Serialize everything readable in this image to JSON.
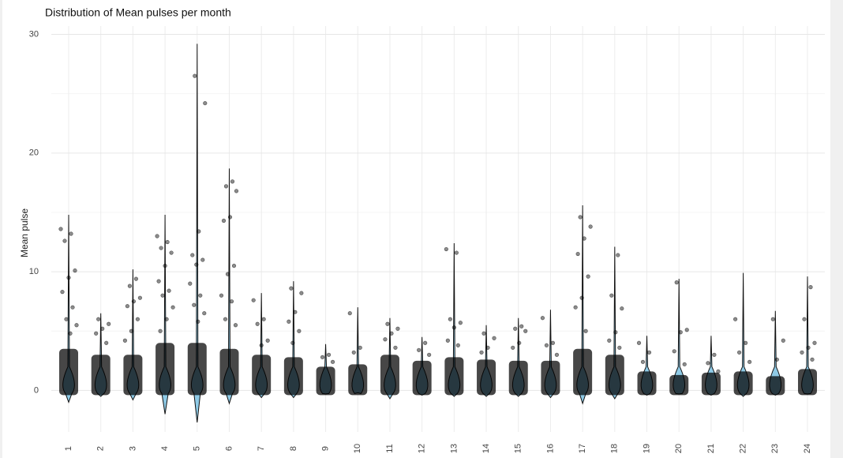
{
  "chart_data": {
    "type": "violin",
    "title": "Distribution of Mean pulses per month",
    "y_label": "Mean pulse",
    "categories": [
      "1",
      "2",
      "3",
      "4",
      "5",
      "6",
      "7",
      "8",
      "9",
      "10",
      "11",
      "12",
      "13",
      "14",
      "15",
      "16",
      "17",
      "18",
      "19",
      "20",
      "21",
      "22",
      "23",
      "24"
    ],
    "max": [
      14.8,
      6.5,
      10.2,
      14.8,
      29.2,
      18.7,
      8.2,
      9.2,
      3.9,
      7.0,
      6.1,
      4.5,
      12.4,
      5.5,
      6.1,
      6.8,
      15.6,
      12.1,
      4.6,
      9.4,
      4.6,
      9.9,
      6.7,
      9.6
    ],
    "min": [
      -1.0,
      -0.5,
      -0.8,
      -2.0,
      -2.7,
      -1.1,
      -0.6,
      -0.6,
      -0.3,
      -0.2,
      -0.7,
      -0.4,
      -0.5,
      -0.5,
      -0.5,
      -0.6,
      -1.1,
      -0.7,
      -0.4,
      -0.3,
      -0.4,
      -0.5,
      -0.4,
      -0.3
    ],
    "cloud_top": [
      3.5,
      3.0,
      3.0,
      4.0,
      4.0,
      3.5,
      3.0,
      2.8,
      2.0,
      2.2,
      3.0,
      2.5,
      2.8,
      2.6,
      2.5,
      2.5,
      3.5,
      3.0,
      1.6,
      1.3,
      1.5,
      1.6,
      1.2,
      1.8
    ],
    "outliers": [
      [
        13.6,
        13.2,
        12.6,
        10.1,
        9.5,
        8.3,
        7.0,
        6.0,
        5.5,
        4.8
      ],
      [
        6.0,
        5.6,
        5.2,
        4.8,
        4.0
      ],
      [
        9.4,
        8.8,
        7.8,
        7.5,
        7.1,
        6.0,
        5.0,
        4.2
      ],
      [
        13.0,
        12.5,
        12.0,
        11.6,
        10.5,
        9.2,
        8.4,
        8.0,
        7.0,
        6.0,
        5.0
      ],
      [
        26.5,
        24.2,
        13.4,
        11.4,
        11.0,
        10.6,
        9.0,
        8.0,
        7.2,
        6.5,
        5.8
      ],
      [
        17.6,
        17.2,
        16.8,
        14.6,
        14.3,
        10.5,
        9.8,
        8.0,
        7.5,
        6.0,
        5.5
      ],
      [
        7.6,
        6.0,
        5.6,
        4.2,
        3.8
      ],
      [
        8.6,
        8.2,
        6.6,
        5.8,
        5.0,
        4.0
      ],
      [
        3.0,
        2.8,
        2.4
      ],
      [
        6.5,
        3.6,
        3.2
      ],
      [
        5.6,
        5.2,
        4.8,
        4.3,
        3.6
      ],
      [
        4.0,
        3.4,
        3.0
      ],
      [
        11.9,
        11.6,
        6.0,
        5.7,
        5.3,
        4.2,
        3.8
      ],
      [
        4.8,
        4.4,
        3.6,
        3.2
      ],
      [
        5.4,
        5.2,
        5.0,
        4.0,
        3.6
      ],
      [
        6.1,
        4.0,
        3.8,
        3.0
      ],
      [
        14.6,
        13.8,
        12.8,
        11.5,
        9.6,
        7.8,
        7.0,
        5.0
      ],
      [
        11.4,
        8.0,
        6.9,
        4.9,
        4.2,
        3.6
      ],
      [
        4.0,
        3.2,
        2.4
      ],
      [
        9.1,
        5.1,
        4.9,
        3.3,
        2.2
      ],
      [
        3.0,
        2.3,
        1.6
      ],
      [
        6.0,
        4.0,
        3.2,
        2.4
      ],
      [
        6.0,
        4.2,
        2.6
      ],
      [
        8.7,
        6.0,
        4.0,
        3.6,
        3.2,
        2.6
      ]
    ],
    "violin_color": "#8ecae6",
    "point_color": "#000000",
    "ylim": [
      -3.5,
      30.7
    ],
    "yticks": [
      0,
      10,
      20,
      30
    ],
    "minor_gridlines": [
      5,
      15,
      25
    ],
    "grid": true
  }
}
